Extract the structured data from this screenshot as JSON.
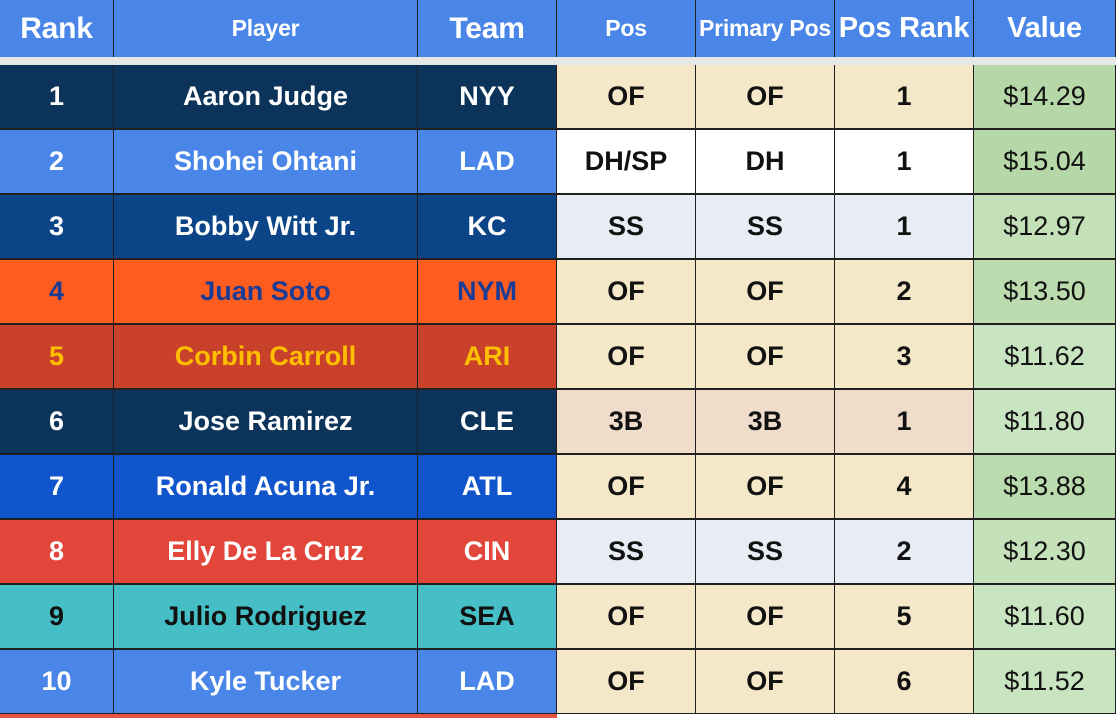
{
  "headers": [
    "Rank",
    "Player",
    "Team",
    "Pos",
    "Primary Pos",
    "Pos Rank",
    "Value"
  ],
  "colors": {
    "header_bg": "#4a86e8",
    "header_text": "#ffffff",
    "pos_of_bg": "#f4e8c8",
    "pos_ss_bg": "#e8edf5",
    "pos_3b_bg": "#f0dccb",
    "pos_dh_bg": "#ffffff",
    "value_bg_dark": "#b6d7a8",
    "value_bg_light": "#c9e4c0"
  },
  "rows": [
    {
      "rank": "1",
      "player": "Aaron Judge",
      "team": "NYY",
      "pos": "OF",
      "primary_pos": "OF",
      "pos_rank": "1",
      "value": "$14.29",
      "team_bg": "#0c3359",
      "team_text": "#ffffff",
      "pos_bg": "#f4e8c8",
      "value_bg": "#b6d7a8"
    },
    {
      "rank": "2",
      "player": "Shohei Ohtani",
      "team": "LAD",
      "pos": "DH/SP",
      "primary_pos": "DH",
      "pos_rank": "1",
      "value": "$15.04",
      "team_bg": "#4a86e8",
      "team_text": "#ffffff",
      "pos_bg": "#ffffff",
      "value_bg": "#b6d7a8"
    },
    {
      "rank": "3",
      "player": "Bobby Witt Jr.",
      "team": "KC",
      "pos": "SS",
      "primary_pos": "SS",
      "pos_rank": "1",
      "value": "$12.97",
      "team_bg": "#0b4587",
      "team_text": "#ffffff",
      "pos_bg": "#e8edf5",
      "value_bg": "#c3e0b8"
    },
    {
      "rank": "4",
      "player": "Juan Soto",
      "team": "NYM",
      "pos": "OF",
      "primary_pos": "OF",
      "pos_rank": "2",
      "value": "$13.50",
      "team_bg": "#ff5c1f",
      "team_text": "#1b3c94",
      "pos_bg": "#f4e8c8",
      "value_bg": "#bcdcb0"
    },
    {
      "rank": "5",
      "player": "Corbin Carroll",
      "team": "ARI",
      "pos": "OF",
      "primary_pos": "OF",
      "pos_rank": "3",
      "value": "$11.62",
      "team_bg": "#c9412a",
      "team_text": "#ffbf00",
      "pos_bg": "#f4e8c8",
      "value_bg": "#c9e4c0"
    },
    {
      "rank": "6",
      "player": "Jose Ramirez",
      "team": "CLE",
      "pos": "3B",
      "primary_pos": "3B",
      "pos_rank": "1",
      "value": "$11.80",
      "team_bg": "#0c3359",
      "team_text": "#ffffff",
      "pos_bg": "#f0dccb",
      "value_bg": "#c9e4c0"
    },
    {
      "rank": "7",
      "player": "Ronald Acuna Jr.",
      "team": "ATL",
      "pos": "OF",
      "primary_pos": "OF",
      "pos_rank": "4",
      "value": "$13.88",
      "team_bg": "#1155cc",
      "team_text": "#ffffff",
      "pos_bg": "#f4e8c8",
      "value_bg": "#b9dbad"
    },
    {
      "rank": "8",
      "player": "Elly De La Cruz",
      "team": "CIN",
      "pos": "SS",
      "primary_pos": "SS",
      "pos_rank": "2",
      "value": "$12.30",
      "team_bg": "#e2453a",
      "team_text": "#ffffff",
      "pos_bg": "#e8edf5",
      "value_bg": "#c5e1ba"
    },
    {
      "rank": "9",
      "player": "Julio Rodriguez",
      "team": "SEA",
      "pos": "OF",
      "primary_pos": "OF",
      "pos_rank": "5",
      "value": "$11.60",
      "team_bg": "#45bfc5",
      "team_text": "#111111",
      "pos_bg": "#f4e8c8",
      "value_bg": "#c9e4c0"
    },
    {
      "rank": "10",
      "player": "Kyle Tucker",
      "team": "LAD",
      "pos": "OF",
      "primary_pos": "OF",
      "pos_rank": "6",
      "value": "$11.52",
      "team_bg": "#4a86e8",
      "team_text": "#ffffff",
      "pos_bg": "#f4e8c8",
      "value_bg": "#c9e4c0"
    }
  ]
}
